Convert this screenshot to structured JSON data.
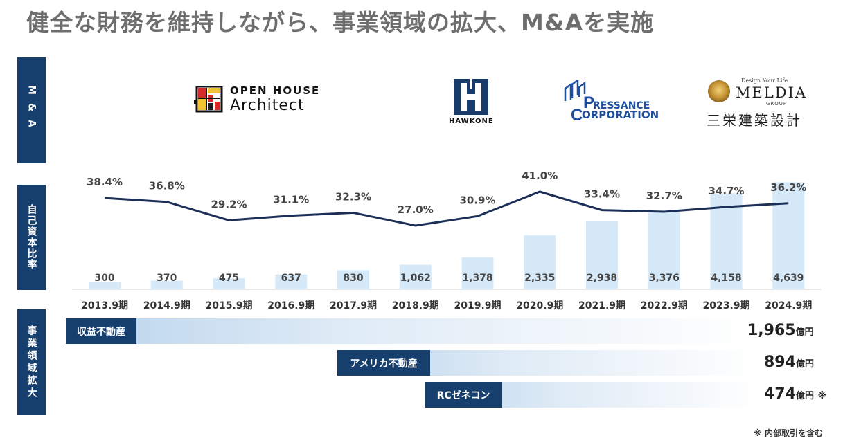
{
  "title": "健全な財務を維持しながら、事業領域の拡大、M&Aを実施",
  "sections": {
    "ma": [
      "M",
      "&",
      "A"
    ],
    "equity": "自己資本比率",
    "domain": "事業領域拡大"
  },
  "logos": {
    "openhouse": {
      "line1": "OPEN HOUSE",
      "line2": "Architect"
    },
    "hawkone": {
      "text": "HAWKONE"
    },
    "pressance": {
      "line1": "RESSANCE",
      "line2": "ORPORATION",
      "p": "P",
      "c": "C"
    },
    "meldia": {
      "tagline": "Design Your Life",
      "name": "MELDIA",
      "group": "GROUP",
      "jp": "三栄建築設計"
    }
  },
  "colors": {
    "navy": "#163f6e",
    "bar": "#d6e9f8",
    "line": "#1b2f57"
  },
  "chart_data": {
    "type": "bar+line",
    "categories": [
      "2013.9期",
      "2014.9期",
      "2015.9期",
      "2016.9期",
      "2017.9期",
      "2018.9期",
      "2019.9期",
      "2020.9期",
      "2021.9期",
      "2022.9期",
      "2023.9期",
      "2024.9期"
    ],
    "series": [
      {
        "name": "",
        "type": "bar",
        "values": [
          300,
          370,
          475,
          637,
          830,
          1062,
          1378,
          2335,
          2938,
          3376,
          4158,
          4639
        ],
        "labels": [
          "300",
          "370",
          "475",
          "637",
          "830",
          "1,062",
          "1,378",
          "2,335",
          "2,938",
          "3,376",
          "4,158",
          "4,639"
        ]
      },
      {
        "name": "自己資本比率",
        "type": "line",
        "values": [
          38.4,
          36.8,
          29.2,
          31.1,
          32.3,
          27.0,
          30.9,
          41.0,
          33.4,
          32.7,
          34.7,
          36.2
        ],
        "labels": [
          "38.4%",
          "36.8%",
          "29.2%",
          "31.1%",
          "32.3%",
          "27.0%",
          "30.9%",
          "41.0%",
          "33.4%",
          "32.7%",
          "34.7%",
          "36.2%"
        ]
      }
    ]
  },
  "domains": [
    {
      "label": "収益不動産",
      "value": "1,965",
      "unit": "億円",
      "note": ""
    },
    {
      "label": "アメリカ不動産",
      "value": "894",
      "unit": "億円",
      "note": ""
    },
    {
      "label": "RCゼネコン",
      "value": "474",
      "unit": "億円",
      "note": "※"
    }
  ],
  "footnote": "※ 内部取引を含む"
}
